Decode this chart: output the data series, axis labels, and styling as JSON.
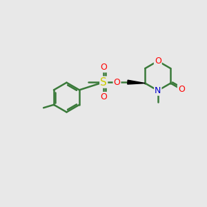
{
  "background_color": "#e8e8e8",
  "bond_color": "#3a7a3a",
  "atom_colors": {
    "O": "#ff0000",
    "N": "#0000cc",
    "S": "#cccc00",
    "C": "#3a7a3a"
  },
  "bond_width": 1.8,
  "figsize": [
    3.0,
    3.0
  ],
  "dpi": 100,
  "xlim": [
    0,
    10
  ],
  "ylim": [
    0,
    10
  ]
}
